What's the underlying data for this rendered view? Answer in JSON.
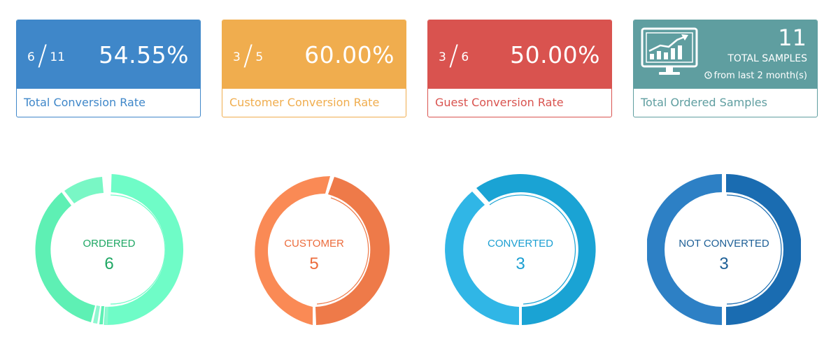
{
  "colors": {
    "blue": "#3f87c9",
    "orange": "#f0ad4e",
    "red": "#d9534f",
    "teal": "#5f9ea0",
    "mint": "#6ef5c4",
    "mint_dark": "#3fcf8f",
    "coral": "#f07f4d",
    "sky": "#2aa9dc",
    "navy": "#2373b8"
  },
  "cards": [
    {
      "numerator": "6",
      "denominator": "11",
      "percent": "54.55%",
      "footer": "Total Conversion Rate"
    },
    {
      "numerator": "3",
      "denominator": "5",
      "percent": "60.00%",
      "footer": "Customer Conversion Rate"
    },
    {
      "numerator": "3",
      "denominator": "6",
      "percent": "50.00%",
      "footer": "Guest Conversion Rate"
    }
  ],
  "samples_card": {
    "count": "11",
    "label": "TOTAL SAMPLES",
    "sub": "from last 2 month(s)",
    "footer": "Total Ordered Samples",
    "icon": "monitor-chart-icon"
  },
  "donuts": [
    {
      "label": "ORDERED",
      "value": "6"
    },
    {
      "label": "CUSTOMER",
      "value": "5"
    },
    {
      "label": "CONVERTED",
      "value": "3"
    },
    {
      "label": "NOT CONVERTED",
      "value": "3"
    }
  ]
}
